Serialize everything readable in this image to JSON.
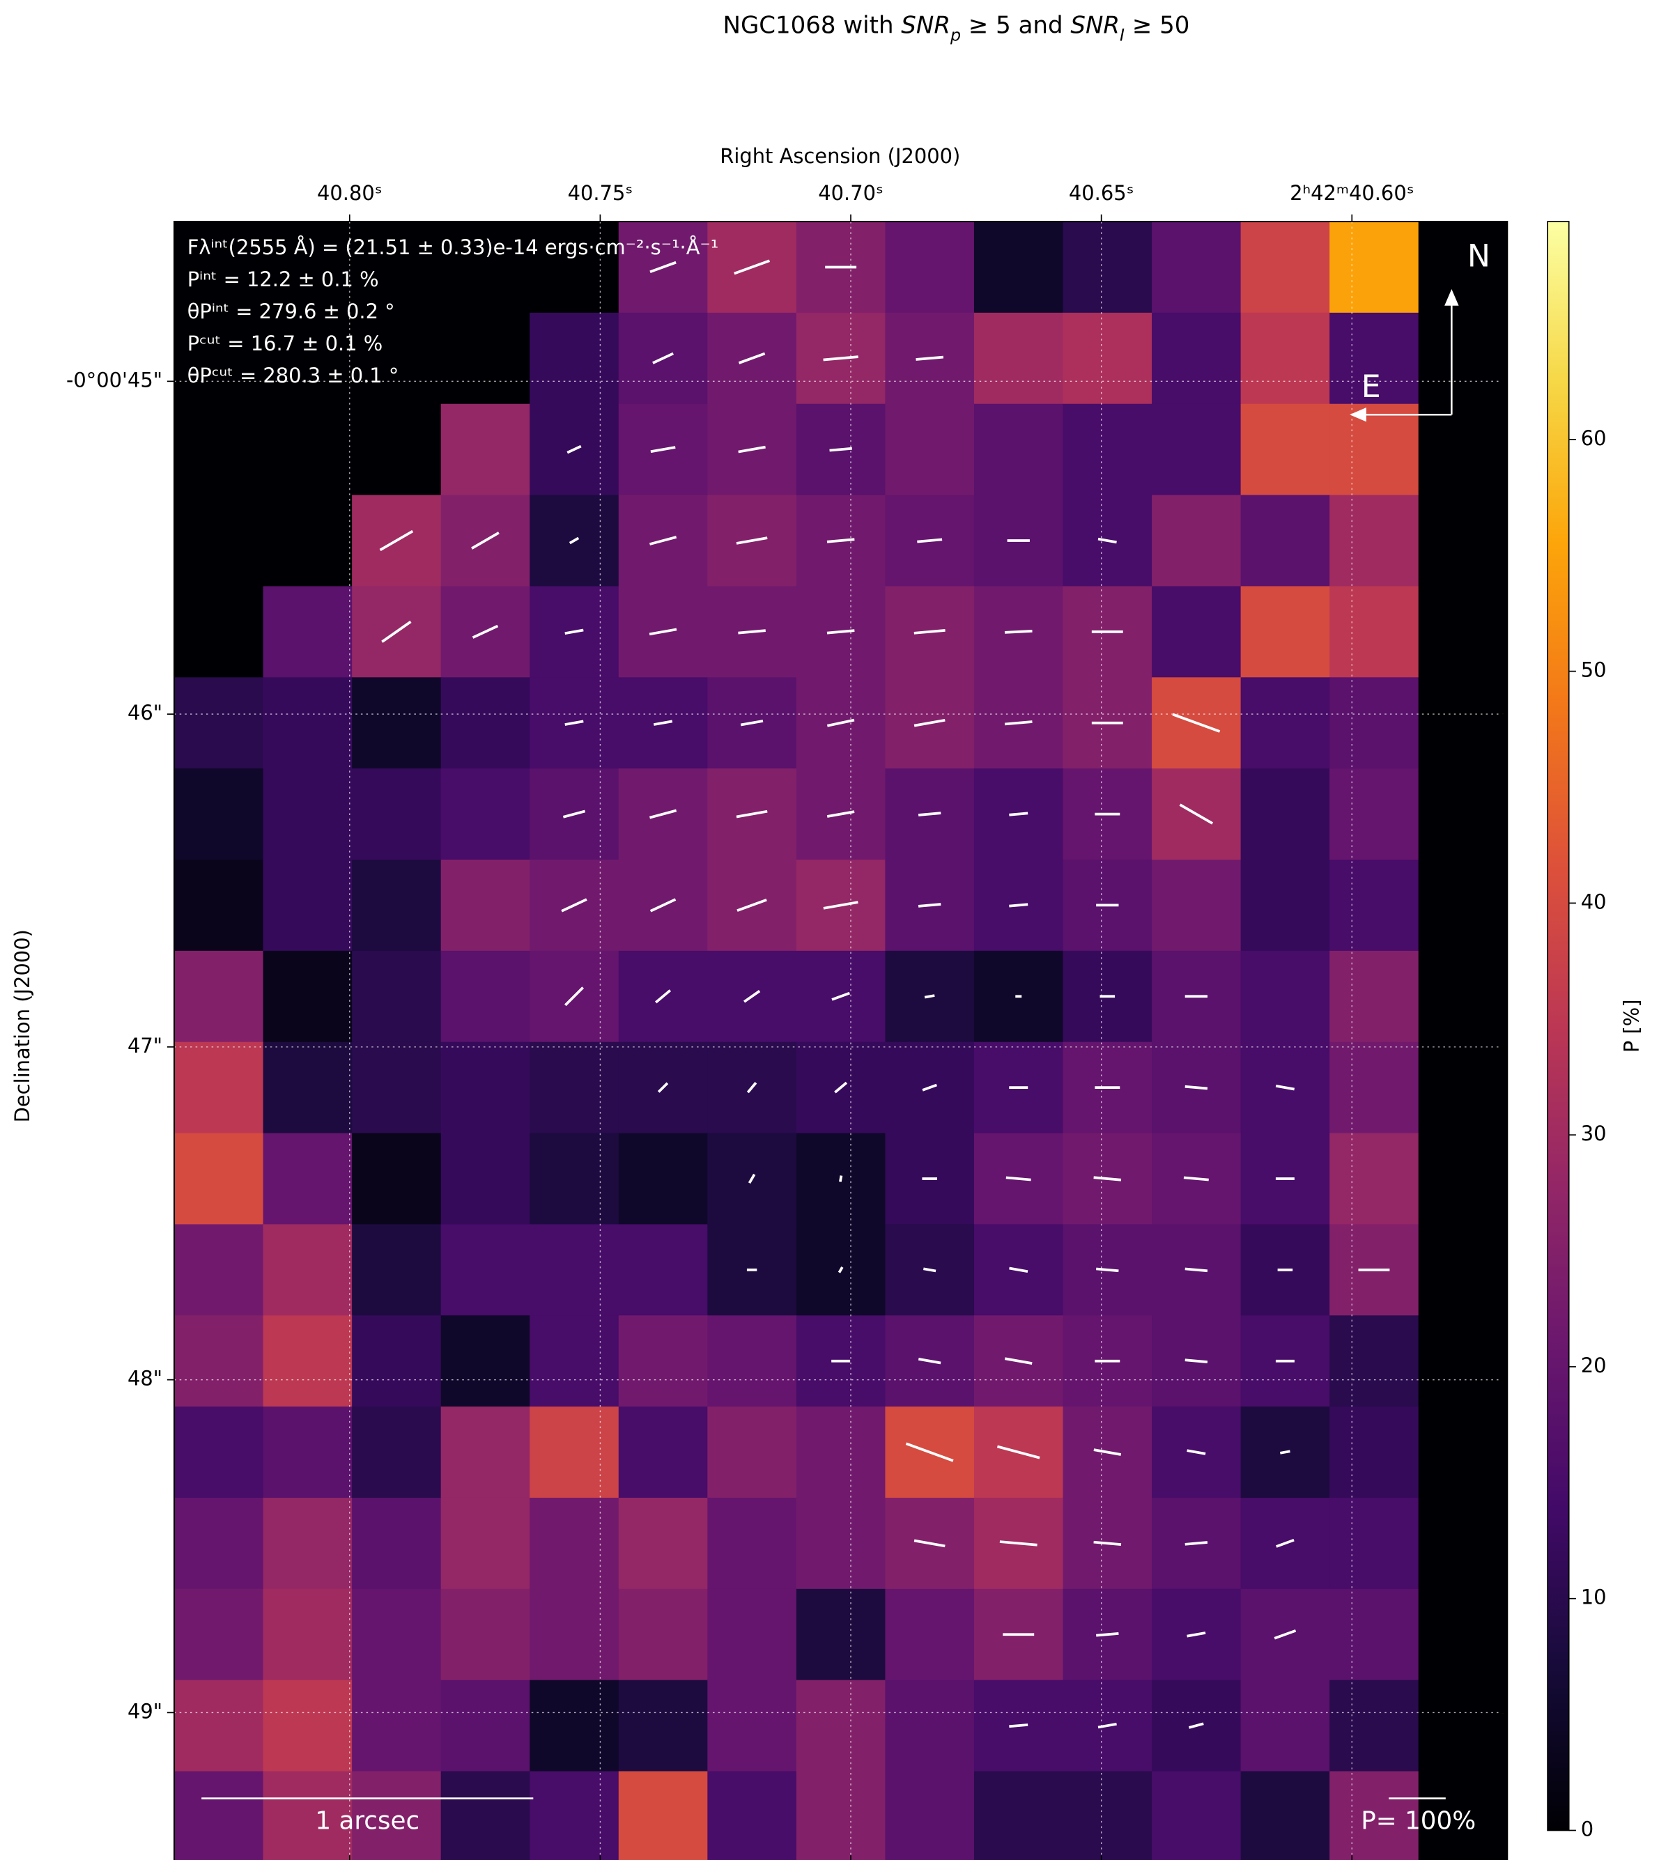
{
  "chart_data": {
    "type": "heatmap",
    "title_parts": [
      "NGC1068 with ",
      "SNR",
      "p",
      " ≥  5 and ",
      "SNR",
      "I",
      " ≥  50"
    ],
    "xlabel": "Right Ascension (J2000)",
    "ylabel": "Declination (J2000)",
    "colorbar_label": "P [%]",
    "colormap": "inferno",
    "grid": true,
    "xlim": [
      40.835,
      40.569
    ],
    "xticks": [
      {
        "value": 40.8,
        "label": "40.80ˢ"
      },
      {
        "value": 40.75,
        "label": "40.75ˢ"
      },
      {
        "value": 40.7,
        "label": "40.70ˢ"
      },
      {
        "value": 40.65,
        "label": "40.65ˢ"
      },
      {
        "value": 40.6,
        "label": "2ʰ42ᵐ40.60ˢ"
      }
    ],
    "ylim": [
      49.45,
      44.52
    ],
    "yticks": [
      {
        "value": 45,
        "label": "-0°00'45\""
      },
      {
        "value": 46,
        "label": "46\""
      },
      {
        "value": 47,
        "label": "47\""
      },
      {
        "value": 48,
        "label": "48\""
      },
      {
        "value": 49,
        "label": "49\""
      }
    ],
    "clim": [
      0,
      69.4
    ],
    "cticks": [
      0,
      10,
      20,
      30,
      40,
      50,
      60
    ],
    "annotations": [
      "Fλⁱⁿᵗ(2555 Å) = (21.51 ± 0.33)e-14 ergs·cm⁻²·s⁻¹·Å⁻¹",
      "Pⁱⁿᵗ = 12.2 ± 0.1 %",
      "θPⁱⁿᵗ = 279.6 ± 0.2 °",
      "Pᶜᵘᵗ = 16.7 ± 0.1 %",
      "θPᶜᵘᵗ = 280.3 ± 0.1 °"
    ],
    "compass": [
      "N",
      "E"
    ],
    "scale_label": "1 arcsec",
    "vector_scale_label": "P= 100%",
    "values": [
      [
        0,
        0,
        0,
        0,
        0,
        22,
        30,
        25,
        20,
        5,
        10,
        18,
        38,
        55,
        0
      ],
      [
        0,
        0,
        0,
        0,
        12,
        18,
        22,
        28,
        22,
        30,
        32,
        15,
        35,
        15,
        0
      ],
      [
        0,
        0,
        0,
        28,
        12,
        20,
        22,
        18,
        22,
        18,
        15,
        15,
        40,
        40,
        0
      ],
      [
        0,
        0,
        30,
        25,
        8,
        22,
        25,
        22,
        20,
        18,
        15,
        25,
        18,
        30,
        0
      ],
      [
        0,
        18,
        28,
        22,
        15,
        22,
        22,
        22,
        25,
        22,
        25,
        15,
        40,
        35,
        0
      ],
      [
        10,
        12,
        5,
        12,
        15,
        15,
        18,
        22,
        25,
        22,
        25,
        40,
        15,
        18,
        0
      ],
      [
        5,
        12,
        12,
        15,
        18,
        22,
        25,
        22,
        18,
        15,
        20,
        30,
        12,
        20,
        0
      ],
      [
        3,
        12,
        8,
        25,
        22,
        22,
        25,
        28,
        18,
        15,
        18,
        22,
        12,
        15,
        0
      ],
      [
        25,
        3,
        10,
        18,
        20,
        15,
        15,
        15,
        8,
        5,
        12,
        18,
        15,
        25,
        0
      ],
      [
        35,
        8,
        10,
        12,
        10,
        10,
        10,
        12,
        12,
        15,
        20,
        18,
        15,
        22,
        0
      ],
      [
        40,
        20,
        3,
        12,
        8,
        5,
        8,
        5,
        12,
        20,
        22,
        20,
        15,
        28,
        0
      ],
      [
        22,
        30,
        8,
        15,
        15,
        15,
        8,
        5,
        10,
        15,
        18,
        18,
        12,
        25,
        0
      ],
      [
        25,
        35,
        12,
        5,
        15,
        22,
        20,
        15,
        18,
        22,
        20,
        18,
        15,
        10,
        0
      ],
      [
        15,
        18,
        10,
        28,
        38,
        15,
        25,
        22,
        40,
        35,
        22,
        15,
        8,
        12,
        0
      ],
      [
        20,
        28,
        18,
        28,
        22,
        28,
        20,
        22,
        25,
        30,
        22,
        18,
        15,
        15,
        0
      ],
      [
        22,
        30,
        20,
        25,
        22,
        25,
        20,
        8,
        20,
        25,
        18,
        15,
        18,
        18,
        0
      ],
      [
        30,
        35,
        20,
        18,
        5,
        8,
        20,
        25,
        18,
        15,
        15,
        12,
        18,
        10,
        0
      ],
      [
        20,
        30,
        25,
        10,
        15,
        40,
        15,
        25,
        18,
        10,
        10,
        15,
        8,
        25,
        0
      ]
    ],
    "angles": [
      [
        null,
        null,
        null,
        null,
        null,
        20,
        20,
        0,
        null,
        null,
        null,
        null,
        null,
        null,
        null
      ],
      [
        null,
        null,
        null,
        null,
        null,
        25,
        20,
        5,
        5,
        null,
        null,
        null,
        null,
        null,
        null
      ],
      [
        null,
        null,
        null,
        null,
        25,
        10,
        10,
        5,
        null,
        null,
        null,
        null,
        null,
        null,
        null
      ],
      [
        null,
        null,
        30,
        30,
        30,
        15,
        10,
        5,
        5,
        0,
        -10,
        null,
        null,
        null,
        null
      ],
      [
        null,
        null,
        35,
        25,
        10,
        10,
        5,
        5,
        5,
        3,
        0,
        null,
        null,
        null,
        null
      ],
      [
        null,
        null,
        null,
        null,
        10,
        10,
        10,
        12,
        10,
        5,
        0,
        -20,
        null,
        null,
        null
      ],
      [
        null,
        null,
        null,
        null,
        15,
        15,
        10,
        10,
        5,
        5,
        0,
        -30,
        null,
        null,
        null
      ],
      [
        null,
        null,
        null,
        null,
        25,
        25,
        20,
        10,
        5,
        5,
        0,
        null,
        null,
        null,
        null
      ],
      [
        null,
        null,
        null,
        null,
        45,
        40,
        35,
        20,
        10,
        0,
        0,
        0,
        null,
        null,
        null
      ],
      [
        null,
        null,
        null,
        null,
        null,
        45,
        50,
        40,
        20,
        0,
        0,
        -5,
        -10,
        null,
        null
      ],
      [
        null,
        null,
        null,
        null,
        null,
        null,
        60,
        80,
        0,
        -5,
        -5,
        -5,
        0,
        null,
        null
      ],
      [
        null,
        null,
        null,
        null,
        null,
        null,
        0,
        60,
        -10,
        -10,
        -5,
        -5,
        0,
        0,
        null
      ],
      [
        null,
        null,
        null,
        null,
        null,
        null,
        null,
        0,
        -10,
        -10,
        0,
        -5,
        0,
        null,
        null
      ],
      [
        null,
        null,
        null,
        null,
        null,
        null,
        null,
        null,
        -20,
        -15,
        -10,
        -10,
        10,
        null,
        null
      ],
      [
        null,
        null,
        null,
        null,
        null,
        null,
        null,
        null,
        -10,
        -5,
        -5,
        5,
        20,
        null,
        null
      ],
      [
        null,
        null,
        null,
        null,
        null,
        null,
        null,
        null,
        null,
        0,
        5,
        10,
        20,
        null,
        null
      ],
      [
        null,
        null,
        null,
        null,
        null,
        null,
        null,
        null,
        null,
        5,
        10,
        15,
        null,
        null,
        null
      ],
      [
        null,
        null,
        null,
        null,
        null,
        null,
        null,
        null,
        null,
        null,
        null,
        null,
        null,
        null,
        null
      ]
    ]
  }
}
